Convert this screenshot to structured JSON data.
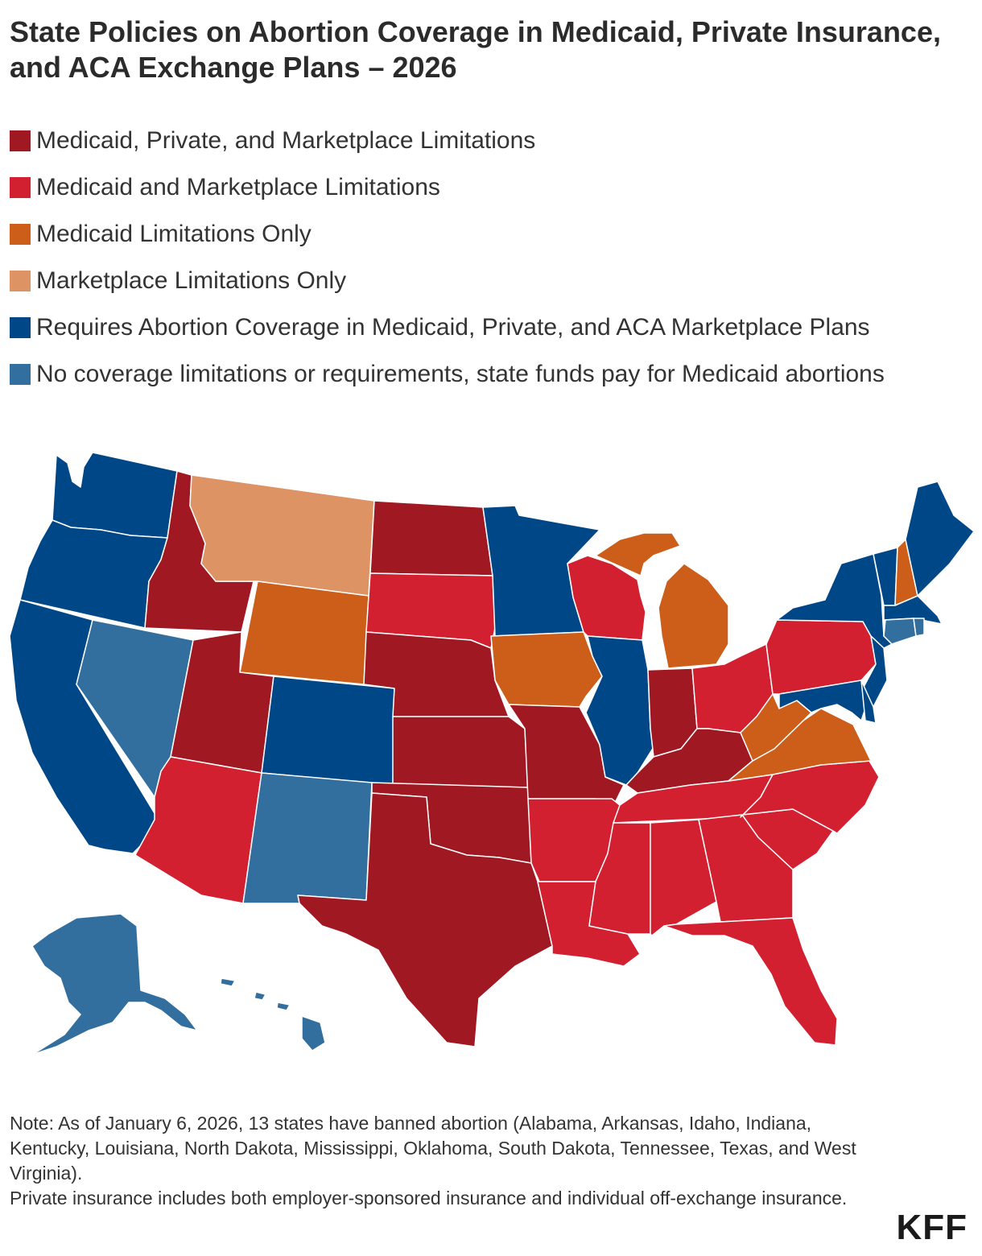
{
  "title": "State Policies on Abortion Coverage in Medicaid, Private Insurance, and ACA Exchange Plans – 2026",
  "legend": [
    {
      "label": "Medicaid, Private, and Marketplace Limitations",
      "color": "#a01822"
    },
    {
      "label": "Medicaid and Marketplace Limitations",
      "color": "#d22030"
    },
    {
      "label": "Medicaid Limitations Only",
      "color": "#cc5e1a"
    },
    {
      "label": "Marketplace Limitations Only",
      "color": "#de9364"
    },
    {
      "label": "Requires Abortion Coverage in Medicaid, Private, and ACA Marketplace Plans",
      "color": "#004787"
    },
    {
      "label": "No coverage limitations or requirements, state funds pay for Medicaid abortions",
      "color": "#326f9e"
    }
  ],
  "map": {
    "categories": {
      "medicaid_private_marketplace": [
        "ID",
        "UT",
        "ND",
        "NE",
        "KS",
        "MO",
        "OK",
        "TX",
        "IN",
        "KY"
      ],
      "medicaid_marketplace": [
        "AZ",
        "SD",
        "WI",
        "PA",
        "OH",
        "AR",
        "LA",
        "MS",
        "AL",
        "GA",
        "FL",
        "SC",
        "NC",
        "TN"
      ],
      "medicaid_only": [
        "WY",
        "IA",
        "MI",
        "WV",
        "VA",
        "NH"
      ],
      "marketplace_only": [
        "MT"
      ],
      "requires_coverage": [
        "WA",
        "OR",
        "CA",
        "CO",
        "MN",
        "IL",
        "NY",
        "VT",
        "ME",
        "MA",
        "NJ",
        "MD",
        "DE"
      ],
      "no_limitations": [
        "NV",
        "NM",
        "AK",
        "HI",
        "CT",
        "RI"
      ]
    }
  },
  "note": {
    "line1": "Note: As of January 6, 2026, 13 states have banned abortion (Alabama, Arkansas, Idaho, Indiana, Kentucky, Louisiana, North Dakota, Mississippi, Oklahoma, South Dakota, Tennessee, Texas, and West Virginia).",
    "line2": "Private insurance includes both employer-sponsored insurance and individual off-exchange insurance."
  },
  "brand": "KFF"
}
